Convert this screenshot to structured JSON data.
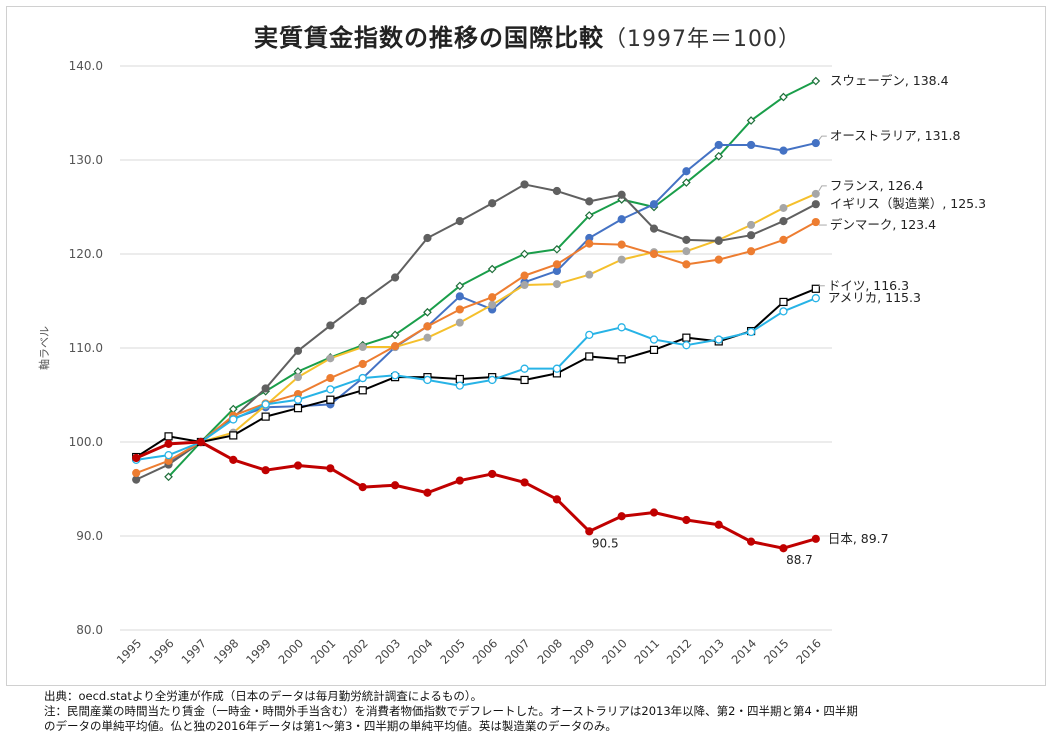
{
  "title": {
    "main": "実質賃金指数の推移の国際比較",
    "sub": "（1997年＝100）"
  },
  "notes": [
    "出典：oecd.statより全労連が作成（日本のデータは毎月勤労統計調査によるもの）。",
    "注：民間産業の時間当たり賃金（一時金・時間外手当含む）を消費者物価指数でデフレートした。オーストラリアは2013年以降、第2・四半期と第4・四半期",
    "のデータの単純平均値。仏と独の2016年データは第1～第3・四半期の単純平均値。英は製造業のデータのみ。"
  ],
  "chart_data": {
    "type": "line",
    "categories": [
      "1995",
      "1996",
      "1997",
      "1998",
      "1999",
      "2000",
      "2001",
      "2002",
      "2003",
      "2004",
      "2005",
      "2006",
      "2007",
      "2008",
      "2009",
      "2010",
      "2011",
      "2012",
      "2013",
      "2014",
      "2015",
      "2016"
    ],
    "ylabel": "軸ラベル",
    "ylim": [
      80,
      140
    ],
    "yticks": [
      "80.0",
      "90.0",
      "100.0",
      "110.0",
      "120.0",
      "130.0",
      "140.0"
    ],
    "grid": true,
    "series": [
      {
        "name": "スウェーデン",
        "end_label": "スウェーデン, 138.4",
        "color": "#1a9e4a",
        "marker": "diamond-open",
        "values": [
          null,
          96.3,
          100,
          103.5,
          105.4,
          107.5,
          109.0,
          110.3,
          111.4,
          113.8,
          116.6,
          118.4,
          120.0,
          120.5,
          124.1,
          125.8,
          125.0,
          127.6,
          130.4,
          134.2,
          136.7,
          138.4
        ]
      },
      {
        "name": "オーストラリア",
        "end_label": "オーストラリア, 131.8",
        "color": "#4472c4",
        "marker": "circle",
        "values": [
          null,
          97.8,
          100,
          102.5,
          103.7,
          103.8,
          104.0,
          106.8,
          110.1,
          112.3,
          115.5,
          114.1,
          117.0,
          118.2,
          121.7,
          123.7,
          125.3,
          128.8,
          131.6,
          131.6,
          131.0,
          131.8
        ]
      },
      {
        "name": "フランス",
        "end_label": "フランス, 126.4",
        "color": "#f5c02c",
        "marker": "circle-gray",
        "values": [
          null,
          null,
          100,
          101.0,
          103.9,
          106.9,
          108.9,
          110.1,
          110.1,
          111.1,
          112.7,
          114.6,
          116.7,
          116.8,
          117.8,
          119.4,
          120.2,
          120.3,
          121.5,
          123.1,
          124.9,
          126.4
        ]
      },
      {
        "name": "イギリス（製造業）",
        "end_label": "イギリス（製造業）, 125.3",
        "color": "#606060",
        "marker": "circle",
        "values": [
          96.0,
          97.6,
          100,
          102.6,
          105.7,
          109.7,
          112.4,
          115.0,
          117.5,
          121.7,
          123.5,
          125.4,
          127.4,
          126.7,
          125.6,
          126.3,
          122.7,
          121.5,
          121.4,
          122.0,
          123.5,
          125.3
        ]
      },
      {
        "name": "デンマーク",
        "end_label": "デンマーク, 123.4",
        "color": "#ed7d31",
        "marker": "circle",
        "values": [
          96.7,
          98.0,
          100,
          102.8,
          104.1,
          105.1,
          106.8,
          108.3,
          110.2,
          112.3,
          114.1,
          115.4,
          117.7,
          118.9,
          121.1,
          121.0,
          120.0,
          118.9,
          119.4,
          120.3,
          121.5,
          123.4
        ]
      },
      {
        "name": "ドイツ",
        "end_label": "ドイツ, 116.3",
        "color": "#000000",
        "marker": "square-open",
        "values": [
          98.4,
          100.6,
          100,
          100.7,
          102.7,
          103.6,
          104.5,
          105.5,
          106.9,
          106.9,
          106.7,
          106.9,
          106.6,
          107.3,
          109.1,
          108.8,
          109.8,
          111.1,
          110.7,
          111.8,
          114.9,
          116.3
        ]
      },
      {
        "name": "アメリカ",
        "end_label": "アメリカ, 115.3",
        "color": "#27b3e6",
        "marker": "circle-open",
        "values": [
          98.1,
          98.6,
          100,
          102.4,
          104.0,
          104.5,
          105.6,
          106.8,
          107.1,
          106.6,
          106.0,
          106.6,
          107.8,
          107.8,
          111.4,
          112.2,
          110.9,
          110.3,
          110.9,
          111.7,
          113.9,
          115.3
        ]
      },
      {
        "name": "日本",
        "end_label": "日本, 89.7",
        "color": "#c00000",
        "marker": "circle",
        "values": [
          98.3,
          99.8,
          100,
          98.1,
          97.0,
          97.5,
          97.2,
          95.2,
          95.4,
          94.6,
          95.9,
          96.6,
          95.7,
          93.9,
          90.5,
          92.1,
          92.5,
          91.7,
          91.2,
          89.4,
          88.7,
          89.7
        ]
      }
    ],
    "annotations": [
      {
        "category": "2009",
        "value": 90.5,
        "text": "90.5"
      },
      {
        "category": "2015",
        "value": 88.7,
        "text": "88.7"
      }
    ]
  }
}
